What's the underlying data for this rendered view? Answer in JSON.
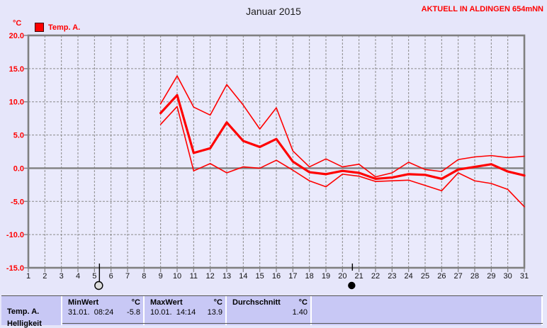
{
  "header": {
    "title": "Januar 2015",
    "station": "AKTUELL IN ALDINGEN 654mNN",
    "unit": "°C",
    "legend_label": "Temp. A."
  },
  "colors": {
    "accent_red": "#ff0000",
    "page_bg": "#e6e6fa",
    "plot_bg": "#eaeafc",
    "table_bg": "#c8c8f5",
    "grid": "#8a8a8a",
    "frame": "#808080"
  },
  "chart_data": {
    "type": "line",
    "title": "Januar 2015",
    "xlabel": "",
    "ylabel": "°C",
    "xlim": [
      1,
      31
    ],
    "ylim": [
      -15,
      20
    ],
    "grid": true,
    "x_ticks": [
      1,
      2,
      3,
      4,
      5,
      6,
      7,
      8,
      9,
      10,
      11,
      12,
      13,
      14,
      15,
      16,
      17,
      18,
      19,
      20,
      21,
      22,
      23,
      24,
      25,
      26,
      27,
      28,
      29,
      30,
      31
    ],
    "y_tick_values": [
      20,
      15,
      10,
      5,
      0,
      -5,
      -10,
      -15
    ],
    "y_tick_labels": [
      "20.0",
      "15.0",
      "10.0",
      "5.0",
      "0.0",
      "-5.0",
      "-10.0",
      "-15.0"
    ],
    "x": [
      9,
      10,
      11,
      12,
      13,
      14,
      15,
      16,
      17,
      18,
      19,
      20,
      21,
      22,
      23,
      24,
      25,
      26,
      27,
      28,
      29,
      30,
      31
    ],
    "series": [
      {
        "name": "daily-max",
        "color": "#ff0000",
        "width": 1.6,
        "values": [
          9.7,
          13.9,
          9.2,
          8.0,
          12.6,
          9.5,
          5.9,
          9.1,
          2.6,
          0.2,
          1.4,
          0.2,
          0.6,
          -1.3,
          -0.7,
          0.9,
          -0.2,
          -0.5,
          1.3,
          1.7,
          1.9,
          1.6,
          1.8
        ]
      },
      {
        "name": "daily-min",
        "color": "#ff0000",
        "width": 1.6,
        "values": [
          6.6,
          9.3,
          -0.4,
          0.7,
          -0.7,
          0.2,
          0.0,
          1.2,
          -0.3,
          -1.9,
          -2.8,
          -0.9,
          -1.2,
          -2.0,
          -1.9,
          -1.8,
          -2.6,
          -3.4,
          -0.7,
          -1.9,
          -2.3,
          -3.2,
          -5.8
        ]
      },
      {
        "name": "daily-mean",
        "color": "#ff0000",
        "width": 3.2,
        "values": [
          8.3,
          11.0,
          2.3,
          3.0,
          6.9,
          4.1,
          3.2,
          4.4,
          1.0,
          -0.6,
          -0.9,
          -0.4,
          -0.7,
          -1.6,
          -1.4,
          -0.9,
          -1.0,
          -1.6,
          -0.2,
          0.2,
          0.6,
          -0.5,
          -1.1
        ]
      }
    ],
    "annotations": [
      {
        "symbol": "full-moon",
        "day": 5.3
      },
      {
        "symbol": "new-moon",
        "day": 20.6
      }
    ],
    "legend_position": "top-left"
  },
  "table": {
    "sensor_label": "Temp. A.",
    "next_sensor_label": "Helligkeit",
    "min_header": "MinWert",
    "min_unit": "°C",
    "min_datetime": "31.01.  08:24",
    "min_value": "-5.8",
    "max_header": "MaxWert",
    "max_unit": "°C",
    "max_datetime": "10.01.  14:14",
    "max_value": "13.9",
    "avg_header": "Durchschnitt",
    "avg_unit": "°C",
    "avg_value": "1.40"
  }
}
